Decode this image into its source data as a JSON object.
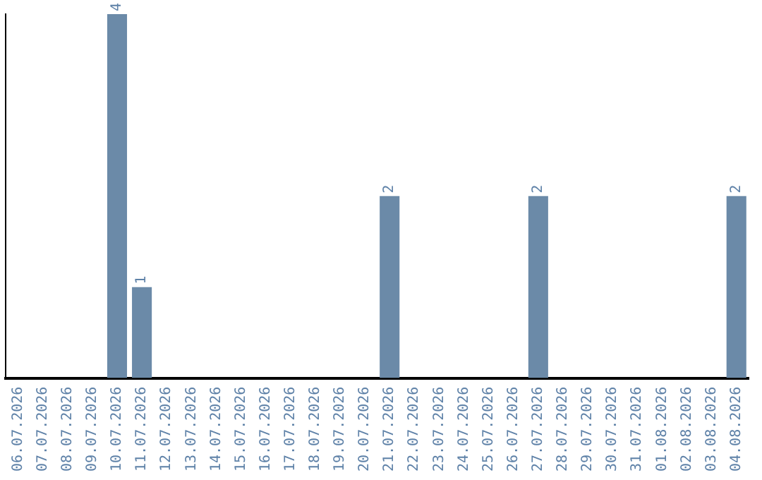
{
  "chart_data": {
    "type": "bar",
    "categories": [
      "06.07.2026",
      "07.07.2026",
      "08.07.2026",
      "09.07.2026",
      "10.07.2026",
      "11.07.2026",
      "12.07.2026",
      "13.07.2026",
      "14.07.2026",
      "15.07.2026",
      "16.07.2026",
      "17.07.2026",
      "18.07.2026",
      "19.07.2026",
      "20.07.2026",
      "21.07.2026",
      "22.07.2026",
      "23.07.2026",
      "24.07.2026",
      "25.07.2026",
      "26.07.2026",
      "27.07.2026",
      "28.07.2026",
      "29.07.2026",
      "30.07.2026",
      "31.07.2026",
      "01.08.2026",
      "02.08.2026",
      "03.08.2026",
      "04.08.2026"
    ],
    "values": [
      0,
      0,
      0,
      0,
      4,
      1,
      0,
      0,
      0,
      0,
      0,
      0,
      0,
      0,
      0,
      2,
      0,
      0,
      0,
      0,
      0,
      2,
      0,
      0,
      0,
      0,
      0,
      0,
      0,
      2
    ],
    "value_labels": [
      null,
      null,
      null,
      null,
      "4",
      "1",
      null,
      null,
      null,
      null,
      null,
      null,
      null,
      null,
      null,
      "2",
      null,
      null,
      null,
      null,
      null,
      "2",
      null,
      null,
      null,
      null,
      null,
      null,
      null,
      "2"
    ],
    "color": "#6b8aa8",
    "tick_labels": "x",
    "grid": false,
    "legend": false
  }
}
